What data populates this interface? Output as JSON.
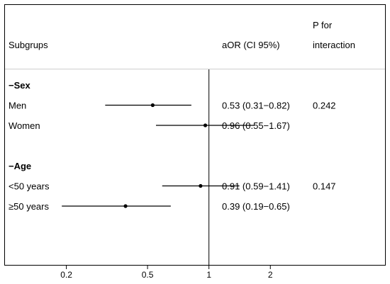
{
  "chart_data": {
    "type": "forest",
    "xscale": "log",
    "xticks": [
      0.2,
      0.5,
      1,
      2
    ],
    "xtick_labels": [
      "0.2",
      "0.5",
      "1",
      "2"
    ],
    "xlim": [
      0.1,
      7.3
    ],
    "reference_line": 1,
    "header": {
      "subgroup": "Subgrups",
      "or_ci": "aOR (CI 95%)",
      "p_line1": "P for",
      "p_line2": "interaction"
    },
    "rows": [
      {
        "kind": "group",
        "label": "−Sex"
      },
      {
        "kind": "item",
        "label": "Men",
        "or": 0.53,
        "lo": 0.31,
        "hi": 0.82,
        "ci_text": "0.53 (0.31−0.82)",
        "p": "0.242"
      },
      {
        "kind": "item",
        "label": "Women",
        "or": 0.96,
        "lo": 0.55,
        "hi": 1.67,
        "ci_text": "0.96 (0.55−1.67)",
        "p": ""
      },
      {
        "kind": "spacer"
      },
      {
        "kind": "group",
        "label": "−Age"
      },
      {
        "kind": "item",
        "label": "<50 years",
        "or": 0.91,
        "lo": 0.59,
        "hi": 1.41,
        "ci_text": "0.91 (0.59−1.41)",
        "p": "0.147"
      },
      {
        "kind": "item",
        "label": "≥50 years",
        "or": 0.39,
        "lo": 0.19,
        "hi": 0.65,
        "ci_text": "0.39 (0.19−0.65)",
        "p": ""
      }
    ]
  }
}
